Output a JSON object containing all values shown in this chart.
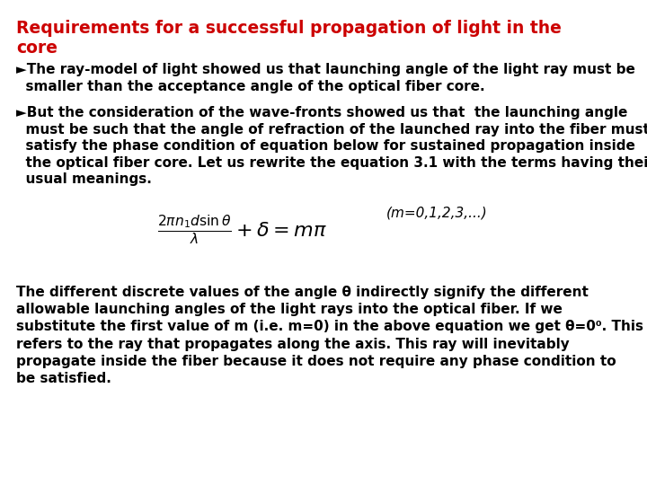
{
  "bg_color": "#ffffff",
  "title_line1": "Requirements for a successful propagation of light in the",
  "title_line2": "core",
  "title_color": "#cc0000",
  "title_fontsize": 13.5,
  "bullet1_text": "►The ray-model of light showed us that launching angle of the light ray must be\n  smaller than the acceptance angle of the optical fiber core.",
  "bullet2_text": "►But the consideration of the wave-fronts showed us that  the launching angle\n  must be such that the angle of refraction of the launched ray into the fiber must\n  satisfy the phase condition of equation below for sustained propagation inside\n  the optical fiber core. Let us rewrite the equation 3.1 with the terms having their\n  usual meanings.",
  "eq_note": "(m=0,1,2,3,...)",
  "body_text": "The different discrete values of the angle θ indirectly signify the different\nallowable launching angles of the light rays into the optical fiber. If we\nsubstitute the first value of m (i.e. m=0) in the above equation we get θ=0⁰. This\nrefers to the ray that propagates along the axis. This ray will inevitably\npropagate inside the fiber because it does not require any phase condition to\nbe satisfied.",
  "body_fontsize": 11,
  "bullet_fontsize": 11,
  "eq_fontsize": 16,
  "eq_note_fontsize": 11
}
